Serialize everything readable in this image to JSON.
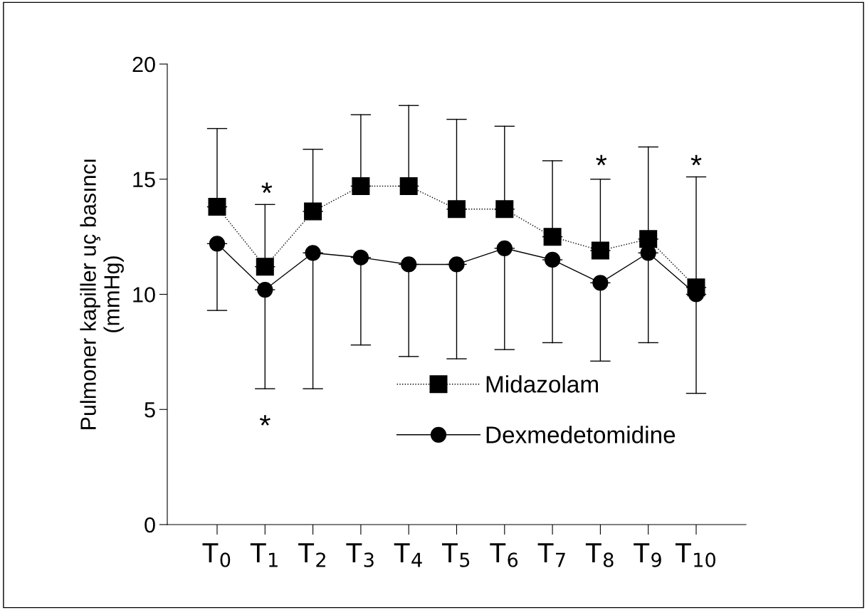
{
  "chart_data": {
    "type": "line",
    "ylabel": "Pulmoner kapiller uç basıncı\n(mmHg)",
    "categories": [
      "T$_{0}$",
      "T$_{1}$",
      "T$_{2}$",
      "T$_{3}$",
      "T$_{4}$",
      "T$_{5}$",
      "T$_{6}$",
      "T$_{7}$",
      "T$_{8}$",
      "T$_{9}$",
      "T$_{10}$"
    ],
    "series": [
      {
        "name": "Midazolam",
        "color": "#000000",
        "marker": "square",
        "line_style": "dotted",
        "values": [
          13.8,
          11.2,
          13.6,
          14.7,
          14.7,
          13.7,
          13.7,
          12.5,
          11.9,
          12.4,
          10.3
        ],
        "errors": [
          [
            13.8,
            17.2
          ],
          [
            11.2,
            13.9
          ],
          [
            13.6,
            16.3
          ],
          [
            14.7,
            17.8
          ],
          [
            14.7,
            18.2
          ],
          [
            13.7,
            17.6
          ],
          [
            13.7,
            17.3
          ],
          [
            12.5,
            15.8
          ],
          [
            11.9,
            15.0
          ],
          [
            12.4,
            16.4
          ],
          [
            10.3,
            15.1
          ]
        ]
      },
      {
        "name": "Dexmedetomidine",
        "color": "#000000",
        "marker": "circle",
        "line_style": "solid",
        "values": [
          12.2,
          10.2,
          11.8,
          11.6,
          11.3,
          11.3,
          12.0,
          11.5,
          10.5,
          11.8,
          10.0
        ],
        "errors": [
          [
            9.3,
            12.2
          ],
          [
            5.9,
            10.2
          ],
          [
            5.9,
            11.8
          ],
          [
            7.8,
            11.6
          ],
          [
            7.3,
            11.3
          ],
          [
            7.2,
            11.3
          ],
          [
            7.6,
            12.0
          ],
          [
            7.9,
            11.5
          ],
          [
            7.1,
            10.5
          ],
          [
            7.9,
            11.8
          ],
          [
            5.7,
            10.0
          ]
        ]
      }
    ],
    "ylim": [
      0,
      20
    ],
    "yticks": [
      0,
      5,
      10,
      15,
      20
    ],
    "grid": false,
    "legend": "bottom",
    "annotations": [
      "*",
      "*",
      "*",
      "*"
    ]
  }
}
